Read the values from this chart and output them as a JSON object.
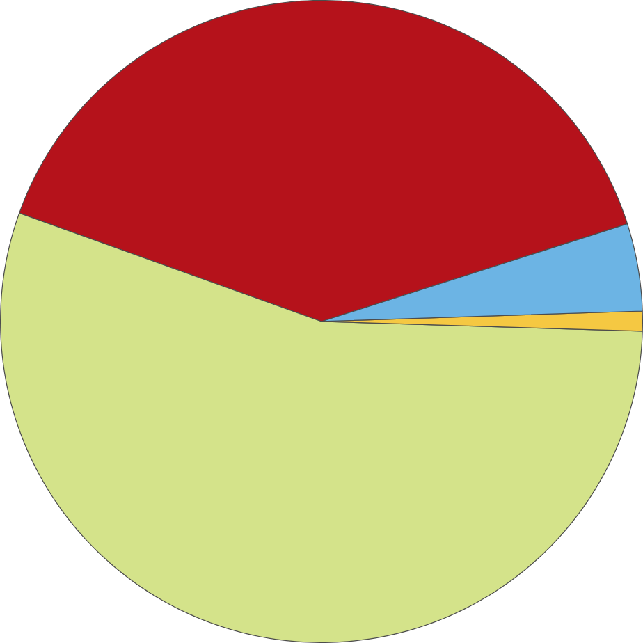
{
  "chart_data": {
    "type": "pie",
    "categories": [
      null,
      null,
      null,
      null
    ],
    "values": [
      39.6,
      55.0,
      1.0,
      4.4
    ],
    "colors": [
      "#b5121b",
      "#d4e38a",
      "#f5c842",
      "#6cb4e4"
    ]
  }
}
